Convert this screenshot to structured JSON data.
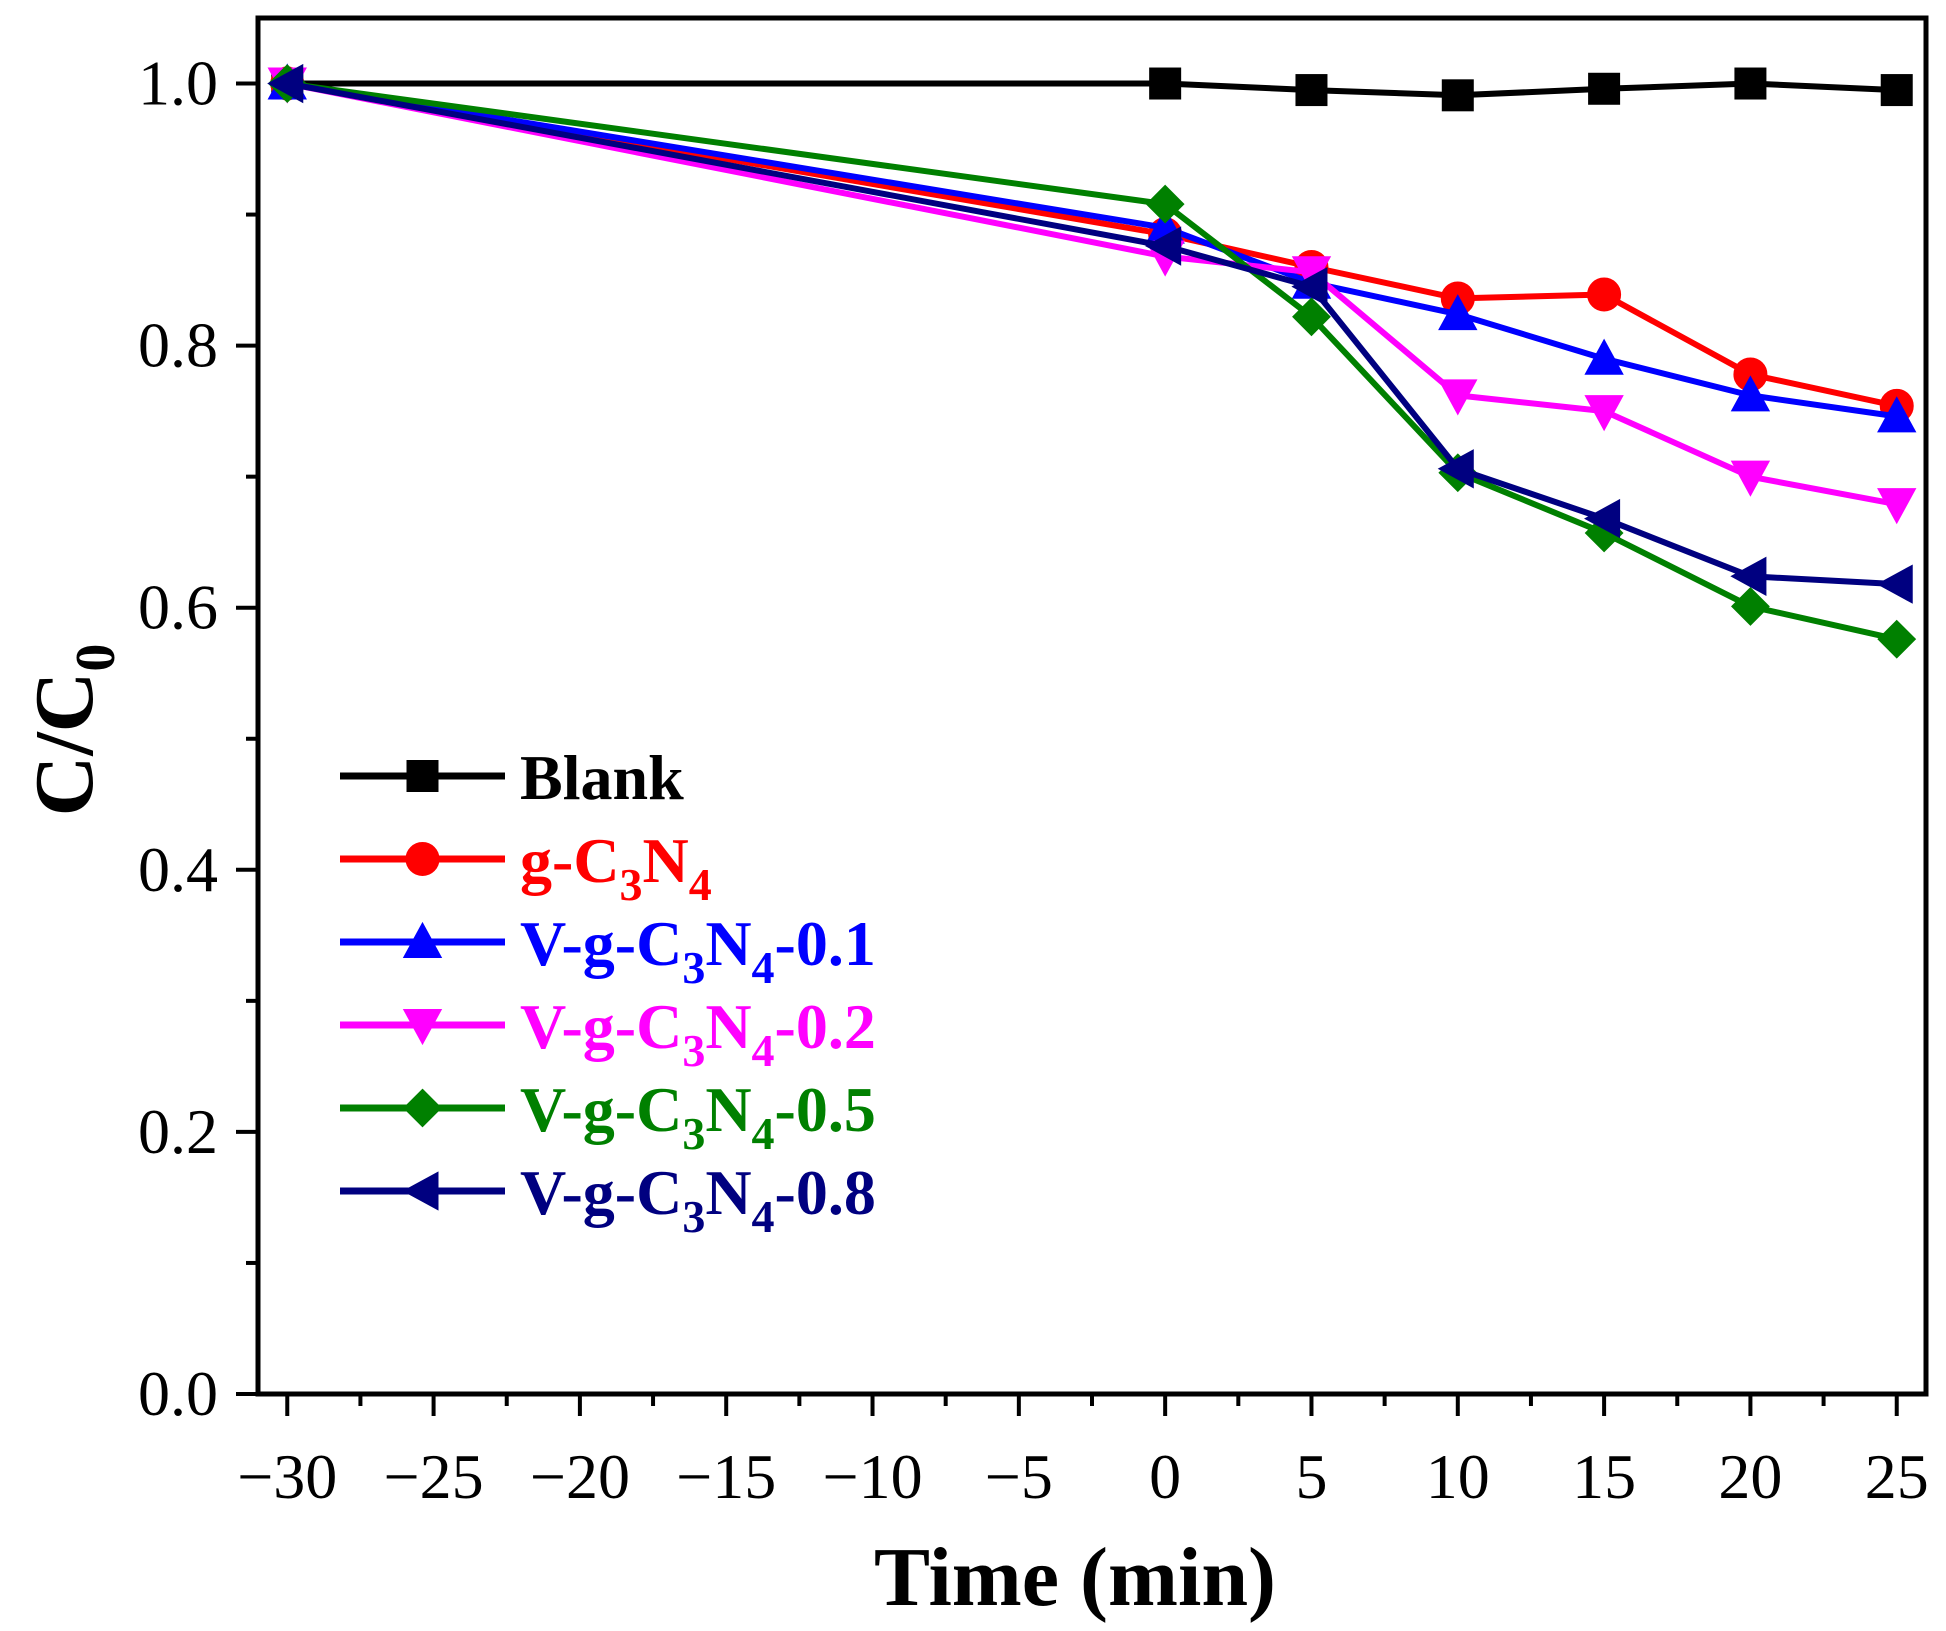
{
  "chart_data": {
    "type": "line",
    "title": "",
    "xlabel": "Time (min)",
    "ylabel": {
      "main": "C/C",
      "sub": "0"
    },
    "xlim": [
      -31,
      26
    ],
    "ylim": [
      0.0,
      1.05
    ],
    "xticks": [
      -30,
      -25,
      -20,
      -15,
      -10,
      -5,
      0,
      5,
      10,
      15,
      20,
      25
    ],
    "xtick_labels": [
      "−30",
      "−25",
      "−20",
      "−15",
      "−10",
      "−5",
      "0",
      "5",
      "10",
      "15",
      "20",
      "25"
    ],
    "yticks": [
      0.0,
      0.2,
      0.4,
      0.6,
      0.8,
      1.0
    ],
    "ytick_labels": [
      "0.0",
      "0.2",
      "0.4",
      "0.6",
      "0.8",
      "1.0"
    ],
    "grid": false,
    "legend_position": "lower-left",
    "x": [
      -30,
      0,
      5,
      10,
      15,
      20,
      25
    ],
    "series": [
      {
        "name": "Blank",
        "parts": [
          [
            "Blank",
            ""
          ]
        ],
        "marker": "square",
        "color": "#000000",
        "values": [
          1.0,
          1.0,
          0.995,
          0.991,
          0.996,
          1.0,
          0.995
        ]
      },
      {
        "name": "g-C3N4",
        "parts": [
          [
            "g-C",
            ""
          ],
          [
            "3",
            "sub"
          ],
          [
            "N",
            ""
          ],
          [
            "4",
            "sub"
          ]
        ],
        "marker": "circle",
        "color": "#ff0000",
        "values": [
          1.0,
          0.885,
          0.86,
          0.836,
          0.839,
          0.778,
          0.754
        ]
      },
      {
        "name": "V-g-C3N4-0.1",
        "parts": [
          [
            "V-g-C",
            ""
          ],
          [
            "3",
            "sub"
          ],
          [
            "N",
            ""
          ],
          [
            "4",
            "sub"
          ],
          [
            "-0.1",
            ""
          ]
        ],
        "marker": "triangle-up",
        "color": "#0000ff",
        "values": [
          1.0,
          0.89,
          0.848,
          0.824,
          0.79,
          0.762,
          0.746
        ]
      },
      {
        "name": "V-g-C3N4-0.2",
        "parts": [
          [
            "V-g-C",
            ""
          ],
          [
            "3",
            "sub"
          ],
          [
            "N",
            ""
          ],
          [
            "4",
            "sub"
          ],
          [
            "-0.2",
            ""
          ]
        ],
        "marker": "triangle-down",
        "color": "#ff00ff",
        "values": [
          1.0,
          0.868,
          0.856,
          0.762,
          0.75,
          0.7,
          0.679
        ]
      },
      {
        "name": "V-g-C3N4-0.5",
        "parts": [
          [
            "V-g-C",
            ""
          ],
          [
            "3",
            "sub"
          ],
          [
            "N",
            ""
          ],
          [
            "4",
            "sub"
          ],
          [
            "-0.5",
            ""
          ]
        ],
        "marker": "diamond",
        "color": "#008000",
        "values": [
          1.0,
          0.908,
          0.822,
          0.703,
          0.657,
          0.601,
          0.576
        ]
      },
      {
        "name": "V-g-C3N4-0.8",
        "parts": [
          [
            "V-g-C",
            ""
          ],
          [
            "3",
            "sub"
          ],
          [
            "N",
            ""
          ],
          [
            "4",
            "sub"
          ],
          [
            "-0.8",
            ""
          ]
        ],
        "marker": "triangle-left",
        "color": "#000080",
        "values": [
          1.0,
          0.876,
          0.845,
          0.706,
          0.668,
          0.624,
          0.618
        ]
      }
    ]
  }
}
